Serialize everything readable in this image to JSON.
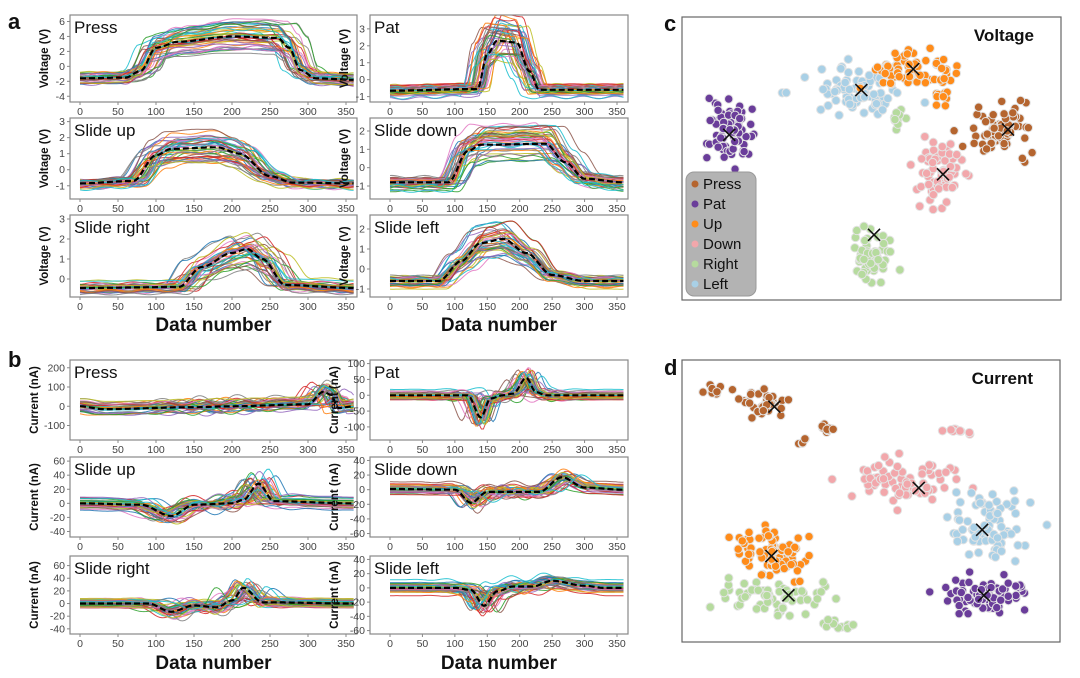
{
  "panel_labels": {
    "a": "a",
    "b": "b",
    "c": "c",
    "d": "d"
  },
  "palette": {
    "traces": [
      "#1f77b4",
      "#ff7f0e",
      "#2ca02c",
      "#d62728",
      "#9467bd",
      "#8c564b",
      "#e377c2",
      "#7f7f7f",
      "#bcbd22",
      "#17becf"
    ],
    "mean_line": "#000000",
    "Press": "#b5652f",
    "Pat": "#6a3d9a",
    "Up": "#ff8c1a",
    "Down": "#f2a7ab",
    "Right": "#b6db9e",
    "Left": "#a9d0e6",
    "legend_bg": "#b3b3b3"
  },
  "chart_data": [
    {
      "panel": "a",
      "type": "line",
      "xlabel": "Data number",
      "xlim": [
        0,
        360
      ],
      "xticks": [
        0,
        50,
        100,
        150,
        200,
        250,
        300,
        350
      ],
      "subplots": [
        {
          "label": "Press",
          "ylabel": "Voltage (V)",
          "ylim": [
            -4.5,
            6.6
          ],
          "yticks": [
            -4,
            -2,
            0,
            2,
            4,
            6
          ],
          "mean": [
            [
              0,
              -1.6
            ],
            [
              60,
              -1.5
            ],
            [
              80,
              -0.6
            ],
            [
              100,
              2.5
            ],
            [
              130,
              3.3
            ],
            [
              200,
              4.0
            ],
            [
              260,
              3.8
            ],
            [
              275,
              2.5
            ],
            [
              290,
              -0.5
            ],
            [
              310,
              -1.6
            ],
            [
              360,
              -1.8
            ]
          ]
        },
        {
          "label": "Pat",
          "ylabel": "Voltage (V)",
          "ylim": [
            -1.2,
            3.7
          ],
          "yticks": [
            -1,
            0,
            1,
            2,
            3
          ],
          "mean": [
            [
              0,
              -0.65
            ],
            [
              135,
              -0.55
            ],
            [
              150,
              1.5
            ],
            [
              165,
              2.3
            ],
            [
              195,
              2.2
            ],
            [
              215,
              0.5
            ],
            [
              230,
              -0.6
            ],
            [
              360,
              -0.6
            ]
          ]
        },
        {
          "label": "Slide up",
          "ylabel": "Voltage (V)",
          "ylim": [
            -1.7,
            3.1
          ],
          "yticks": [
            -1,
            0,
            1,
            2,
            3
          ],
          "mean": [
            [
              0,
              -0.85
            ],
            [
              70,
              -0.7
            ],
            [
              100,
              0.9
            ],
            [
              120,
              1.3
            ],
            [
              180,
              1.4
            ],
            [
              210,
              1.0
            ],
            [
              250,
              -0.4
            ],
            [
              280,
              -0.8
            ],
            [
              360,
              -0.85
            ]
          ]
        },
        {
          "label": "Slide down",
          "ylabel": "Voltage (V)",
          "ylim": [
            -1.6,
            2.6
          ],
          "yticks": [
            -1,
            0,
            1,
            2
          ],
          "mean": [
            [
              0,
              -0.8
            ],
            [
              90,
              -0.8
            ],
            [
              120,
              0.9
            ],
            [
              140,
              1.25
            ],
            [
              240,
              1.3
            ],
            [
              270,
              0.3
            ],
            [
              300,
              -0.6
            ],
            [
              360,
              -0.8
            ]
          ]
        },
        {
          "label": "Slide right",
          "ylabel": "Voltage (V)",
          "ylim": [
            -0.8,
            3.1
          ],
          "yticks": [
            0,
            1,
            2,
            3
          ],
          "mean": [
            [
              0,
              -0.45
            ],
            [
              130,
              -0.4
            ],
            [
              160,
              0.6
            ],
            [
              200,
              1.3
            ],
            [
              220,
              1.5
            ],
            [
              240,
              1.0
            ],
            [
              270,
              -0.3
            ],
            [
              360,
              -0.45
            ]
          ]
        },
        {
          "label": "Slide left",
          "ylabel": "Voltage (V)",
          "ylim": [
            -1.3,
            2.6
          ],
          "yticks": [
            -1,
            0,
            1,
            2
          ],
          "mean": [
            [
              0,
              -0.6
            ],
            [
              75,
              -0.6
            ],
            [
              110,
              0.4
            ],
            [
              140,
              1.3
            ],
            [
              175,
              1.5
            ],
            [
              210,
              0.8
            ],
            [
              250,
              -0.3
            ],
            [
              300,
              -0.6
            ],
            [
              360,
              -0.6
            ]
          ]
        }
      ]
    },
    {
      "panel": "b",
      "type": "line",
      "xlabel": "Data number",
      "xlim": [
        0,
        360
      ],
      "xticks": [
        0,
        50,
        100,
        150,
        200,
        250,
        300,
        350
      ],
      "subplots": [
        {
          "label": "Press",
          "ylabel": "Current (nA)",
          "ylim": [
            -165,
            230
          ],
          "yticks": [
            -100,
            0,
            100,
            200
          ],
          "mean": [
            [
              0,
              0
            ],
            [
              30,
              -15
            ],
            [
              150,
              -5
            ],
            [
              200,
              0
            ],
            [
              300,
              10
            ],
            [
              320,
              75
            ],
            [
              330,
              60
            ],
            [
              340,
              -10
            ],
            [
              360,
              0
            ]
          ]
        },
        {
          "label": "Pat",
          "ylabel": "Current (nA)",
          "ylim": [
            -135,
            105
          ],
          "yticks": [
            -100,
            -50,
            0,
            50,
            100
          ],
          "mean": [
            [
              0,
              0
            ],
            [
              120,
              0
            ],
            [
              140,
              -70
            ],
            [
              155,
              -10
            ],
            [
              175,
              0
            ],
            [
              190,
              5
            ],
            [
              210,
              55
            ],
            [
              225,
              10
            ],
            [
              240,
              0
            ],
            [
              360,
              0
            ]
          ]
        },
        {
          "label": "Slide up",
          "ylabel": "Current (nA)",
          "ylim": [
            -45,
            63
          ],
          "yticks": [
            -40,
            -20,
            0,
            20,
            40,
            60
          ],
          "mean": [
            [
              0,
              0
            ],
            [
              80,
              -2
            ],
            [
              120,
              -18
            ],
            [
              150,
              -2
            ],
            [
              200,
              0
            ],
            [
              215,
              5
            ],
            [
              235,
              28
            ],
            [
              255,
              3
            ],
            [
              360,
              0
            ]
          ]
        },
        {
          "label": "Slide down",
          "ylabel": "Current (nA)",
          "ylim": [
            -62,
            42
          ],
          "yticks": [
            -60,
            -40,
            -20,
            0,
            20,
            40
          ],
          "mean": [
            [
              0,
              1
            ],
            [
              100,
              0
            ],
            [
              125,
              -18
            ],
            [
              150,
              -3
            ],
            [
              230,
              -3
            ],
            [
              265,
              17
            ],
            [
              300,
              3
            ],
            [
              360,
              0
            ]
          ]
        },
        {
          "label": "Slide right",
          "ylabel": "Current (nA)",
          "ylim": [
            -45,
            72
          ],
          "yticks": [
            -40,
            -20,
            0,
            20,
            40,
            60
          ],
          "mean": [
            [
              0,
              0
            ],
            [
              90,
              0
            ],
            [
              120,
              -13
            ],
            [
              150,
              -3
            ],
            [
              180,
              -6
            ],
            [
              200,
              5
            ],
            [
              215,
              25
            ],
            [
              240,
              2
            ],
            [
              360,
              0
            ]
          ]
        },
        {
          "label": "Slide left",
          "ylabel": "Current (nA)",
          "ylim": [
            -62,
            42
          ],
          "yticks": [
            -60,
            -40,
            -20,
            0,
            20,
            40
          ],
          "mean": [
            [
              0,
              0
            ],
            [
              100,
              0
            ],
            [
              125,
              -3
            ],
            [
              145,
              -25
            ],
            [
              165,
              -5
            ],
            [
              190,
              2
            ],
            [
              220,
              2
            ],
            [
              250,
              10
            ],
            [
              300,
              3
            ],
            [
              330,
              0
            ],
            [
              360,
              0
            ]
          ]
        }
      ]
    },
    {
      "panel": "c",
      "type": "scatter",
      "title": "Voltage",
      "legend_position": "bottom-left",
      "legend": [
        "Press",
        "Pat",
        "Up",
        "Down",
        "Right",
        "Left"
      ],
      "xlim": [
        0,
        100
      ],
      "ylim": [
        0,
        100
      ],
      "clusters": [
        {
          "cls": "Pat",
          "center": [
            11,
            59
          ],
          "spread": [
            3.5,
            7
          ],
          "n": 75
        },
        {
          "cls": "Left",
          "center": [
            45,
            75
          ],
          "spread": [
            8,
            5.5
          ],
          "n": 80
        },
        {
          "cls": "Up",
          "center": [
            60,
            84
          ],
          "spread": [
            7,
            4
          ],
          "n": 65
        },
        {
          "cls": "Up",
          "center": [
            70,
            74
          ],
          "spread": [
            2,
            4
          ],
          "n": 12
        },
        {
          "cls": "Right",
          "center": [
            57,
            66
          ],
          "spread": [
            1.5,
            3
          ],
          "n": 10
        },
        {
          "cls": "Press",
          "center": [
            86,
            61
          ],
          "spread": [
            6,
            6
          ],
          "n": 75
        },
        {
          "cls": "Down",
          "center": [
            69,
            44
          ],
          "spread": [
            4.5,
            8
          ],
          "n": 75
        },
        {
          "cls": "Right",
          "center": [
            50,
            14
          ],
          "spread": [
            4,
            6
          ],
          "n": 55
        }
      ],
      "centroids": [
        {
          "cls": "Press",
          "xy": [
            87.6,
            61
          ]
        },
        {
          "cls": "Pat",
          "xy": [
            10.8,
            59
          ]
        },
        {
          "cls": "Up",
          "xy": [
            61.5,
            84
          ]
        },
        {
          "cls": "Down",
          "xy": [
            69.7,
            44
          ]
        },
        {
          "cls": "Right",
          "xy": [
            50.7,
            21
          ]
        },
        {
          "cls": "Left",
          "xy": [
            47.2,
            76
          ]
        }
      ]
    },
    {
      "panel": "d",
      "type": "scatter",
      "title": "Current",
      "xlim": [
        0,
        100
      ],
      "ylim": [
        0,
        100
      ],
      "clusters": [
        {
          "cls": "Press",
          "center": [
            20,
            88
          ],
          "spread": [
            4.5,
            3
          ],
          "n": 35
        },
        {
          "cls": "Press",
          "center": [
            6,
            92
          ],
          "spread": [
            1.5,
            1.5
          ],
          "n": 8
        },
        {
          "cls": "Press",
          "center": [
            38,
            78
          ],
          "spread": [
            2,
            1.5
          ],
          "n": 9
        },
        {
          "cls": "Press",
          "center": [
            31,
            73
          ],
          "spread": [
            1,
            0.8
          ],
          "n": 5
        },
        {
          "cls": "Down",
          "center": [
            60,
            58
          ],
          "spread": [
            9,
            5
          ],
          "n": 70
        },
        {
          "cls": "Down",
          "center": [
            73,
            77
          ],
          "spread": [
            3,
            1.2
          ],
          "n": 12
        },
        {
          "cls": "Left",
          "center": [
            83,
            42
          ],
          "spread": [
            7,
            8
          ],
          "n": 80
        },
        {
          "cls": "Up",
          "center": [
            22,
            30
          ],
          "spread": [
            7,
            6
          ],
          "n": 85
        },
        {
          "cls": "Right",
          "center": [
            24,
            13
          ],
          "spread": [
            11,
            4.5
          ],
          "n": 60
        },
        {
          "cls": "Right",
          "center": [
            42,
            3
          ],
          "spread": [
            6,
            1
          ],
          "n": 12
        },
        {
          "cls": "Pat",
          "center": [
            82,
            14
          ],
          "spread": [
            7.5,
            4.5
          ],
          "n": 85
        }
      ],
      "centroids": [
        {
          "cls": "Press",
          "xy": [
            23.3,
            86
          ]
        },
        {
          "cls": "Pat",
          "xy": [
            81.2,
            14
          ]
        },
        {
          "cls": "Up",
          "xy": [
            22.5,
            29
          ]
        },
        {
          "cls": "Down",
          "xy": [
            63.2,
            55
          ]
        },
        {
          "cls": "Right",
          "xy": [
            27.2,
            14
          ]
        },
        {
          "cls": "Left",
          "xy": [
            80.7,
            39
          ]
        }
      ]
    }
  ]
}
